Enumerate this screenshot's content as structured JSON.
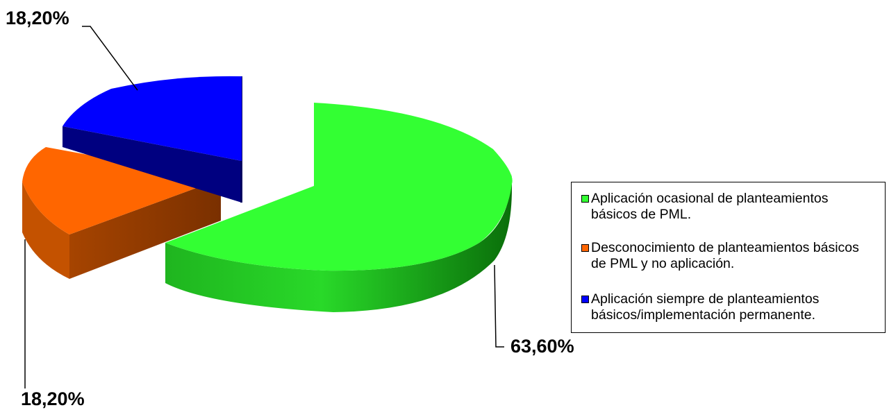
{
  "chart_data": {
    "type": "pie",
    "title": "",
    "values": [
      63.6,
      18.2,
      18.2
    ],
    "data_labels": [
      "63,60%",
      "18,20%",
      "18,20%"
    ],
    "legend": [
      {
        "label": "Aplicación ocasional de planteamientos\nbásicos de PML.",
        "color": "#33ff33"
      },
      {
        "label": "Desconocimiento de planteamientos básicos\nde PML y no aplicación.",
        "color": "#ff6600"
      },
      {
        "label": "Aplicación siempre de planteamientos\nbásicos/implementación permanente.",
        "color": "#0000ff"
      }
    ],
    "legend_position": "right",
    "style": "3d-exploded-pie"
  }
}
